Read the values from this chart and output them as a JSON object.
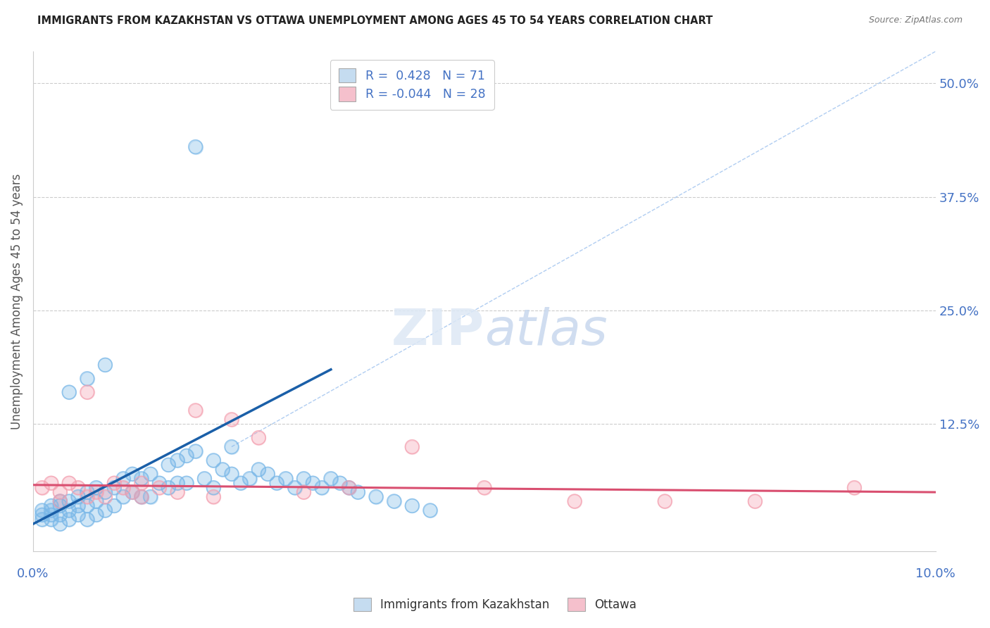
{
  "title": "IMMIGRANTS FROM KAZAKHSTAN VS OTTAWA UNEMPLOYMENT AMONG AGES 45 TO 54 YEARS CORRELATION CHART",
  "source": "Source: ZipAtlas.com",
  "ylabel": "Unemployment Among Ages 45 to 54 years",
  "right_yticks": [
    "50.0%",
    "37.5%",
    "25.0%",
    "12.5%"
  ],
  "right_ytick_vals": [
    0.5,
    0.375,
    0.25,
    0.125
  ],
  "xlim": [
    0.0,
    0.1
  ],
  "ylim": [
    -0.015,
    0.535
  ],
  "blue_color": "#7ab8e8",
  "pink_color": "#f4a0b0",
  "blue_line_color": "#1a5fa8",
  "pink_line_color": "#d94f70",
  "dashed_line_color": "#a8c8f0",
  "watermark": "ZIPatlas",
  "blue_scatter_x": [
    0.001,
    0.001,
    0.001,
    0.002,
    0.002,
    0.002,
    0.002,
    0.003,
    0.003,
    0.003,
    0.003,
    0.004,
    0.004,
    0.004,
    0.005,
    0.005,
    0.005,
    0.006,
    0.006,
    0.006,
    0.007,
    0.007,
    0.007,
    0.008,
    0.008,
    0.009,
    0.009,
    0.01,
    0.01,
    0.011,
    0.011,
    0.012,
    0.012,
    0.013,
    0.013,
    0.014,
    0.015,
    0.015,
    0.016,
    0.016,
    0.017,
    0.017,
    0.018,
    0.019,
    0.02,
    0.02,
    0.021,
    0.022,
    0.023,
    0.024,
    0.025,
    0.026,
    0.027,
    0.028,
    0.029,
    0.03,
    0.031,
    0.032,
    0.033,
    0.034,
    0.035,
    0.036,
    0.038,
    0.04,
    0.042,
    0.044,
    0.004,
    0.006,
    0.008,
    0.018,
    0.022
  ],
  "blue_scatter_y": [
    0.03,
    0.025,
    0.02,
    0.035,
    0.03,
    0.025,
    0.02,
    0.04,
    0.035,
    0.025,
    0.015,
    0.04,
    0.03,
    0.02,
    0.045,
    0.035,
    0.025,
    0.05,
    0.035,
    0.02,
    0.055,
    0.04,
    0.025,
    0.05,
    0.03,
    0.055,
    0.035,
    0.065,
    0.045,
    0.07,
    0.05,
    0.065,
    0.045,
    0.07,
    0.045,
    0.06,
    0.08,
    0.055,
    0.085,
    0.06,
    0.09,
    0.06,
    0.095,
    0.065,
    0.085,
    0.055,
    0.075,
    0.07,
    0.06,
    0.065,
    0.075,
    0.07,
    0.06,
    0.065,
    0.055,
    0.065,
    0.06,
    0.055,
    0.065,
    0.06,
    0.055,
    0.05,
    0.045,
    0.04,
    0.035,
    0.03,
    0.16,
    0.175,
    0.19,
    0.43,
    0.1
  ],
  "pink_scatter_x": [
    0.001,
    0.002,
    0.003,
    0.004,
    0.005,
    0.006,
    0.007,
    0.008,
    0.009,
    0.01,
    0.011,
    0.012,
    0.014,
    0.016,
    0.018,
    0.02,
    0.022,
    0.025,
    0.03,
    0.035,
    0.042,
    0.05,
    0.06,
    0.07,
    0.08,
    0.091,
    0.003,
    0.006,
    0.012
  ],
  "pink_scatter_y": [
    0.055,
    0.06,
    0.05,
    0.06,
    0.055,
    0.045,
    0.05,
    0.045,
    0.06,
    0.055,
    0.05,
    0.06,
    0.055,
    0.05,
    0.14,
    0.045,
    0.13,
    0.11,
    0.05,
    0.055,
    0.1,
    0.055,
    0.04,
    0.04,
    0.04,
    0.055,
    0.04,
    0.16,
    0.045
  ],
  "blue_trendline_x": [
    0.0,
    0.033
  ],
  "blue_trendline_y": [
    0.015,
    0.185
  ],
  "pink_trendline_x": [
    0.0,
    0.1
  ],
  "pink_trendline_y": [
    0.058,
    0.05
  ],
  "dashed_trendline_x": [
    0.022,
    0.1
  ],
  "dashed_trendline_y": [
    0.1,
    0.535
  ]
}
